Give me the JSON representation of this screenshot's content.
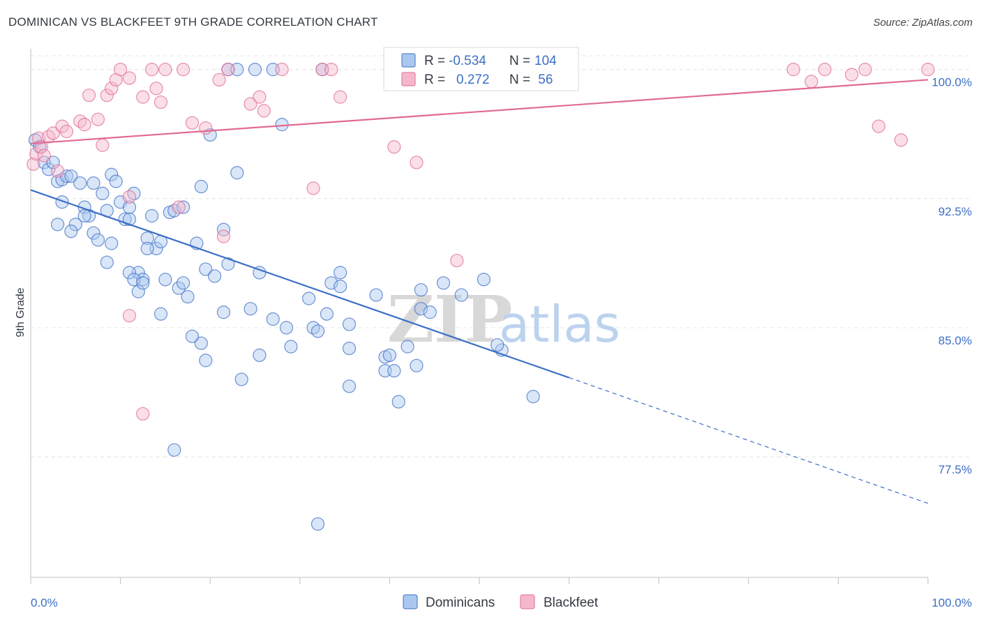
{
  "title": "DOMINICAN VS BLACKFEET 9TH GRADE CORRELATION CHART",
  "source": "Source: ZipAtlas.com",
  "colors": {
    "blue": "#3d6fc5",
    "blue_fill": "#aac8ef",
    "pink": "#e06a93",
    "pink_fill": "#f5b8cb",
    "grid": "#e3e3e3",
    "axis_text": "#3d6fc5"
  },
  "legend_box": {
    "rows": [
      {
        "series": "Dominicans",
        "r_label": "R = ",
        "r_value": "-0.534",
        "n_label": "N = ",
        "n_value": "104"
      },
      {
        "series": "Blackfeet",
        "r_label": "R = ",
        "r_value": "0.272",
        "n_label": "N = ",
        "n_value": " 56"
      }
    ]
  },
  "bottom_legend": [
    "Dominicans",
    "Blackfeet"
  ],
  "watermark": {
    "zip": "ZIP",
    "atlas": "atlas"
  },
  "chart_data": {
    "type": "scatter",
    "xlabel": "",
    "ylabel": "9th Grade",
    "xlim": [
      0,
      100
    ],
    "ylim": [
      70.5,
      101.2
    ],
    "x_tick_labels": [
      {
        "value": 0,
        "label": "0.0%"
      },
      {
        "value": 100,
        "label": "100.0%"
      }
    ],
    "y_ticks": [
      {
        "value": 100.0,
        "label": "100.0%"
      },
      {
        "value": 92.5,
        "label": "92.5%"
      },
      {
        "value": 85.0,
        "label": "85.0%"
      },
      {
        "value": 77.5,
        "label": "77.5%"
      }
    ],
    "grid": true,
    "legend_position": "top-center",
    "series": [
      {
        "name": "Dominicans",
        "color": "#3d6fc5",
        "trend": {
          "x0": 0,
          "y0": 93.0,
          "x1": 60,
          "y1": 82.1,
          "dashed_to_x": 100,
          "dashed_to_y": 74.8
        },
        "points": [
          [
            0.5,
            95.9
          ],
          [
            1.0,
            95.5
          ],
          [
            1.5,
            94.6
          ],
          [
            2.0,
            94.2
          ],
          [
            2.5,
            94.6
          ],
          [
            3.0,
            93.5
          ],
          [
            3.5,
            93.6
          ],
          [
            4.0,
            93.8
          ],
          [
            3.5,
            92.3
          ],
          [
            4.5,
            93.8
          ],
          [
            5.5,
            93.4
          ],
          [
            6.0,
            92.0
          ],
          [
            6.5,
            91.5
          ],
          [
            5.0,
            91.0
          ],
          [
            7.0,
            90.5
          ],
          [
            7.5,
            90.1
          ],
          [
            7.0,
            93.4
          ],
          [
            8.0,
            92.8
          ],
          [
            8.5,
            91.8
          ],
          [
            9.0,
            93.9
          ],
          [
            9.5,
            93.5
          ],
          [
            10.0,
            92.3
          ],
          [
            10.5,
            91.3
          ],
          [
            11.0,
            92.0
          ],
          [
            11.5,
            92.8
          ],
          [
            13.5,
            91.5
          ],
          [
            13.0,
            90.2
          ],
          [
            14.0,
            89.6
          ],
          [
            14.5,
            90.0
          ],
          [
            15.5,
            91.7
          ],
          [
            16.0,
            91.8
          ],
          [
            17.0,
            92.0
          ],
          [
            12.0,
            88.2
          ],
          [
            12.5,
            87.8
          ],
          [
            11.0,
            88.2
          ],
          [
            11.5,
            87.8
          ],
          [
            12.0,
            87.1
          ],
          [
            12.5,
            87.6
          ],
          [
            15.0,
            87.8
          ],
          [
            16.5,
            87.3
          ],
          [
            17.0,
            87.6
          ],
          [
            18.5,
            89.9
          ],
          [
            19.5,
            88.4
          ],
          [
            20.5,
            88.0
          ],
          [
            21.5,
            90.7
          ],
          [
            17.5,
            86.8
          ],
          [
            21.5,
            85.9
          ],
          [
            22.0,
            88.7
          ],
          [
            24.5,
            86.1
          ],
          [
            25.5,
            88.2
          ],
          [
            27.0,
            85.5
          ],
          [
            28.5,
            85.0
          ],
          [
            29.0,
            83.9
          ],
          [
            25.5,
            83.4
          ],
          [
            23.5,
            82.0
          ],
          [
            19.5,
            83.1
          ],
          [
            19.0,
            84.1
          ],
          [
            18.0,
            84.5
          ],
          [
            14.5,
            85.8
          ],
          [
            16.0,
            77.9
          ],
          [
            20.0,
            96.2
          ],
          [
            23.0,
            94.0
          ],
          [
            19.0,
            93.2
          ],
          [
            13.0,
            89.6
          ],
          [
            22.0,
            100.0
          ],
          [
            23.0,
            100.0
          ],
          [
            25.0,
            100.0
          ],
          [
            27.0,
            100.0
          ],
          [
            32.5,
            100.0
          ],
          [
            28.0,
            96.8
          ],
          [
            31.0,
            86.7
          ],
          [
            31.5,
            85.0
          ],
          [
            32.0,
            84.8
          ],
          [
            33.5,
            87.6
          ],
          [
            33.0,
            85.8
          ],
          [
            34.5,
            87.4
          ],
          [
            34.5,
            88.2
          ],
          [
            35.5,
            85.2
          ],
          [
            35.5,
            83.8
          ],
          [
            35.5,
            81.6
          ],
          [
            38.5,
            86.9
          ],
          [
            39.5,
            83.3
          ],
          [
            40.0,
            83.4
          ],
          [
            39.5,
            82.5
          ],
          [
            40.5,
            82.5
          ],
          [
            42.0,
            83.9
          ],
          [
            43.0,
            82.8
          ],
          [
            43.5,
            86.1
          ],
          [
            43.5,
            87.2
          ],
          [
            44.5,
            85.9
          ],
          [
            46.0,
            87.6
          ],
          [
            48.0,
            86.9
          ],
          [
            41.0,
            80.7
          ],
          [
            56.0,
            81.0
          ],
          [
            52.5,
            83.7
          ],
          [
            52.0,
            84.0
          ],
          [
            50.5,
            87.8
          ],
          [
            32.0,
            73.6
          ],
          [
            11.0,
            91.3
          ],
          [
            6.0,
            91.5
          ],
          [
            3.0,
            91.0
          ],
          [
            9.0,
            89.9
          ],
          [
            4.5,
            90.6
          ],
          [
            8.5,
            88.8
          ]
        ]
      },
      {
        "name": "Blackfeet",
        "color": "#e06a93",
        "trend": {
          "x0": 0,
          "y0": 95.7,
          "x1": 100,
          "y1": 99.4
        },
        "points": [
          [
            0.3,
            94.5
          ],
          [
            0.6,
            95.1
          ],
          [
            0.9,
            96.0
          ],
          [
            1.2,
            95.5
          ],
          [
            1.5,
            95.0
          ],
          [
            2.0,
            96.1
          ],
          [
            2.5,
            96.3
          ],
          [
            3.0,
            94.1
          ],
          [
            3.5,
            96.7
          ],
          [
            4.0,
            96.4
          ],
          [
            5.5,
            97.0
          ],
          [
            6.0,
            96.8
          ],
          [
            6.5,
            98.5
          ],
          [
            7.5,
            97.1
          ],
          [
            8.0,
            95.6
          ],
          [
            8.5,
            98.5
          ],
          [
            9.0,
            98.9
          ],
          [
            9.5,
            99.4
          ],
          [
            10.0,
            100.0
          ],
          [
            11.0,
            99.5
          ],
          [
            12.5,
            98.4
          ],
          [
            13.5,
            100.0
          ],
          [
            14.0,
            98.9
          ],
          [
            14.5,
            98.1
          ],
          [
            15.0,
            100.0
          ],
          [
            17.0,
            100.0
          ],
          [
            18.0,
            96.9
          ],
          [
            19.5,
            96.6
          ],
          [
            21.0,
            99.4
          ],
          [
            22.0,
            100.0
          ],
          [
            24.5,
            98.0
          ],
          [
            25.5,
            98.4
          ],
          [
            26.0,
            97.6
          ],
          [
            28.0,
            100.0
          ],
          [
            32.5,
            100.0
          ],
          [
            33.5,
            100.0
          ],
          [
            34.5,
            98.4
          ],
          [
            40.5,
            95.5
          ],
          [
            43.0,
            94.6
          ],
          [
            45.5,
            100.0
          ],
          [
            47.0,
            100.0
          ],
          [
            85.0,
            100.0
          ],
          [
            87.0,
            99.3
          ],
          [
            88.5,
            100.0
          ],
          [
            91.5,
            99.7
          ],
          [
            93.0,
            100.0
          ],
          [
            94.5,
            96.7
          ],
          [
            97.0,
            95.9
          ],
          [
            100.0,
            100.0
          ],
          [
            11.0,
            92.6
          ],
          [
            16.5,
            92.0
          ],
          [
            21.5,
            90.3
          ],
          [
            31.5,
            93.1
          ],
          [
            47.5,
            88.9
          ],
          [
            11.0,
            85.7
          ],
          [
            12.5,
            80.0
          ]
        ]
      }
    ]
  }
}
